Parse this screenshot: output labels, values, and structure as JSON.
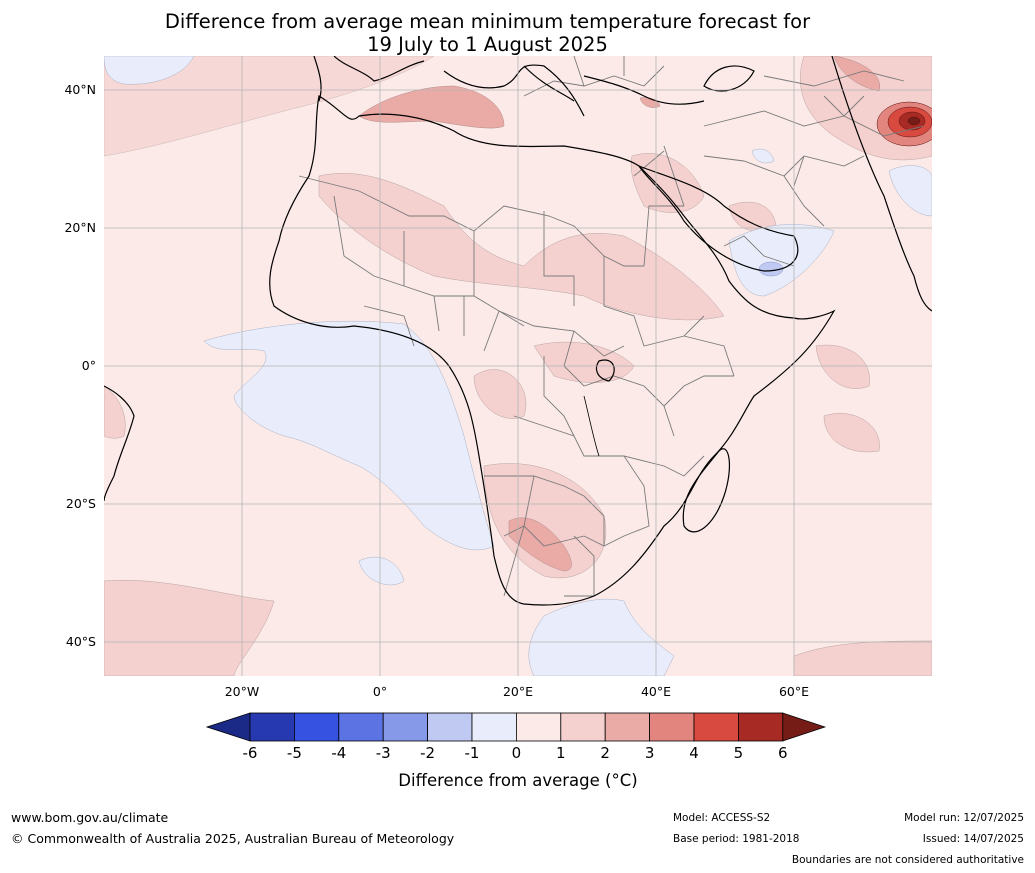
{
  "title": {
    "line1": "Difference from average mean minimum temperature forecast for",
    "line2": "19 July to 1 August 2025"
  },
  "map": {
    "region": "Africa",
    "lat_labels": [
      "40°N",
      "20°N",
      "0°",
      "20°S",
      "40°S"
    ],
    "lon_labels": [
      "20°W",
      "0°",
      "20°E",
      "40°E",
      "60°E"
    ],
    "gridlines": true
  },
  "legend": {
    "label": "Difference from average (°C)",
    "ticks": [
      "-6",
      "-5",
      "-4",
      "-3",
      "-2",
      "-1",
      "0",
      "1",
      "2",
      "3",
      "4",
      "5",
      "6"
    ],
    "colors": [
      "#1b2a86",
      "#2639b0",
      "#3553e0",
      "#5b73e3",
      "#8698e8",
      "#c0c9f2",
      "#e9edfb",
      "#fbeae8",
      "#f4d1cf",
      "#eaaba7",
      "#e3857f",
      "#d84a40",
      "#a82a24",
      "#761c17"
    ]
  },
  "footer": {
    "website": "www.bom.gov.au/climate",
    "copyright": "© Commonwealth of Australia 2025, Australian Bureau of Meteorology",
    "model": "Model: ACCESS-S2",
    "base_period": "Base period: 1981-2018",
    "model_run": "Model run: 12/07/2025",
    "issued": "Issued: 14/07/2025",
    "disclaimer": "Boundaries are not considered authoritative"
  }
}
